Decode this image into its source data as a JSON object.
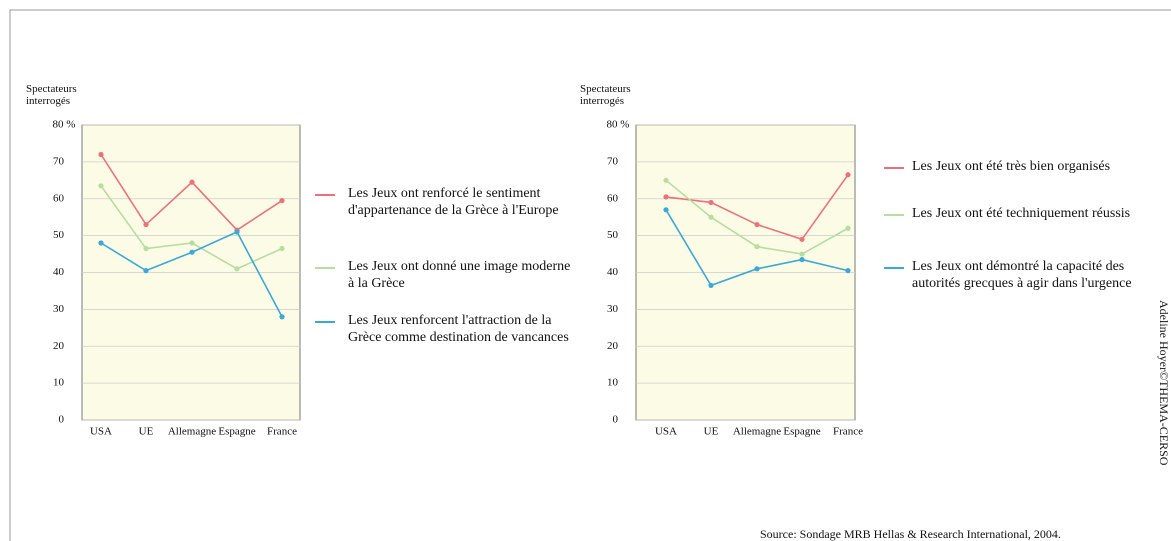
{
  "chart_data": [
    {
      "type": "line",
      "ylabel": "Spectateurs interrogés",
      "categories": [
        "USA",
        "UE",
        "Allemagne",
        "Espagne",
        "France"
      ],
      "ylim": [
        0,
        80
      ],
      "yticks": [
        0,
        10,
        20,
        30,
        40,
        50,
        60,
        70,
        {
          "value": 80,
          "label": "80 %"
        }
      ],
      "grid": true,
      "series": [
        {
          "name": "Les Jeux ont renforcé le sentiment d'appartenance de la Grèce à l'Europe",
          "color": "#f0707a",
          "values": [
            72,
            53,
            64.5,
            51.5,
            59.5
          ]
        },
        {
          "name": "Les Jeux ont donné une image moderne à la Grèce",
          "color": "#b5dea0",
          "values": [
            63.5,
            46.5,
            48,
            41,
            46.5
          ]
        },
        {
          "name": "Les Jeux  renforcent l'attraction de la Grèce comme destination de vancances",
          "color": "#3aa8d8",
          "values": [
            48,
            40.5,
            45.5,
            51,
            28
          ]
        }
      ]
    },
    {
      "type": "line",
      "ylabel": "Spectateurs interrogés",
      "categories": [
        "USA",
        "UE",
        "Allemagne",
        "Espagne",
        "France"
      ],
      "ylim": [
        0,
        80
      ],
      "yticks": [
        0,
        10,
        20,
        30,
        40,
        50,
        60,
        70,
        {
          "value": 80,
          "label": "80 %"
        }
      ],
      "grid": true,
      "series": [
        {
          "name": "Les Jeux ont été très bien organisés",
          "color": "#f0707a",
          "values": [
            60.5,
            59,
            53,
            49,
            66.5
          ]
        },
        {
          "name": "Les Jeux ont été techniquement réussis",
          "color": "#b5dea0",
          "values": [
            65,
            55,
            47,
            45,
            52
          ]
        },
        {
          "name": "Les Jeux ont démontré la capacité des autorités grecques à agir dans l'urgence",
          "color": "#3aa8d8",
          "values": [
            57,
            36.5,
            41,
            43.5,
            40.5
          ]
        }
      ]
    }
  ],
  "source": "Source: Sondage MRB Hellas & Research International, 2004.",
  "credit": "Adeline Hoyer©THEMA-CERSO"
}
